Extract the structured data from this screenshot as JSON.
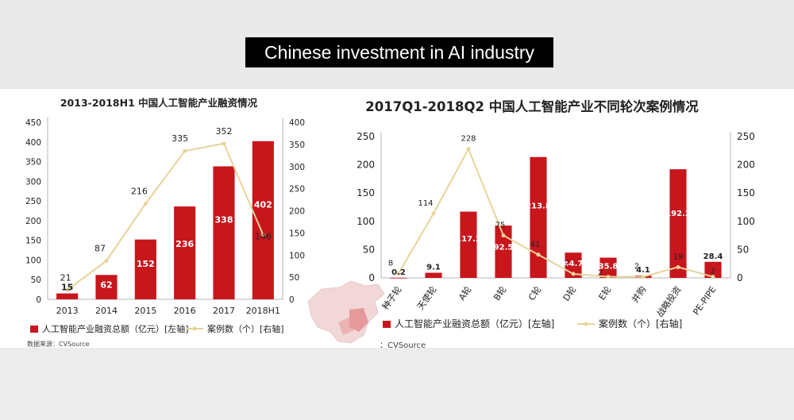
{
  "banner_title": "Chinese investment in AI industry",
  "colors": {
    "bar": "#c8161d",
    "line": "#e7d49a",
    "text": "#222222",
    "bar_label": "#ffffff"
  },
  "chart_data": [
    {
      "type": "bar",
      "title": "2013-2018H1 中国人工智能产业融资情况",
      "categories": [
        "2013",
        "2014",
        "2015",
        "2016",
        "2017",
        "2018H1"
      ],
      "series": [
        {
          "name": "人工智能产业融资总额（亿元）[左轴]",
          "type": "bar",
          "axis": "left",
          "values": [
            15,
            62,
            152,
            236,
            338,
            402
          ]
        },
        {
          "name": "案例数（个）[右轴]",
          "type": "line",
          "axis": "right",
          "values": [
            21,
            87,
            216,
            335,
            352,
            146
          ]
        }
      ],
      "ylim_left": [
        0,
        450
      ],
      "yticks_left": [
        0,
        50,
        100,
        150,
        200,
        250,
        300,
        350,
        400,
        450
      ],
      "ylim_right": [
        0,
        400
      ],
      "yticks_right": [
        0,
        50,
        100,
        150,
        200,
        250,
        300,
        350,
        400
      ],
      "source": "数据来源：CVSource",
      "legend_position": "bottom"
    },
    {
      "type": "bar",
      "title": "2017Q1-2018Q2  中国人工智能产业不同轮次案例情况",
      "categories": [
        "种子轮",
        "天使轮",
        "A轮",
        "B轮",
        "C轮",
        "D轮",
        "E轮",
        "并购",
        "战略投资",
        "PE-PIPE"
      ],
      "series": [
        {
          "name": "人工智能产业融资总额（亿元）[左轴]",
          "type": "bar",
          "axis": "left",
          "values": [
            0.2,
            9.1,
            117.2,
            92.5,
            213.8,
            44.7,
            35.8,
            4.1,
            192.2,
            28.4
          ]
        },
        {
          "name": "案例数（个）[右轴]",
          "type": "line",
          "axis": "right",
          "values": [
            8,
            114,
            228,
            75,
            41,
            7,
            2,
            2,
            19,
            2
          ]
        }
      ],
      "ylim_left": [
        0,
        250
      ],
      "yticks_left": [
        0,
        50,
        100,
        150,
        200,
        250
      ],
      "ylim_right": [
        0,
        250
      ],
      "yticks_right": [
        0,
        50,
        100,
        150,
        200,
        250
      ],
      "source": "：CVSource",
      "legend_position": "bottom"
    }
  ]
}
